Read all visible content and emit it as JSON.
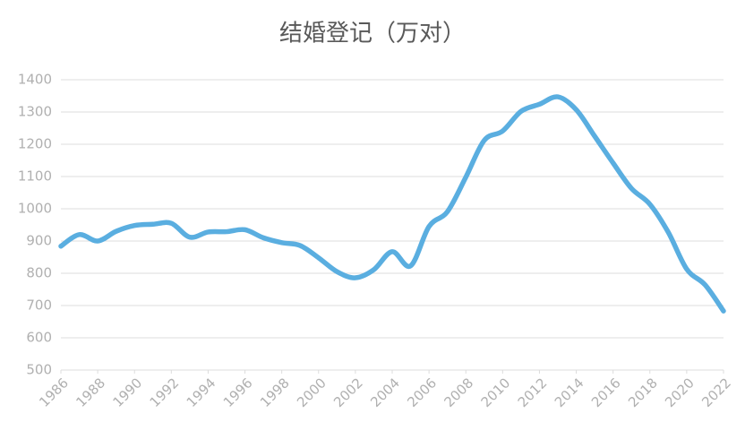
{
  "chart_data": {
    "type": "line",
    "title": "结婚登记（万对）",
    "x": [
      1986,
      1987,
      1988,
      1989,
      1990,
      1991,
      1992,
      1993,
      1994,
      1995,
      1996,
      1997,
      1998,
      1999,
      2000,
      2001,
      2002,
      2003,
      2004,
      2005,
      2006,
      2007,
      2008,
      2009,
      2010,
      2011,
      2012,
      2013,
      2014,
      2015,
      2016,
      2017,
      2018,
      2019,
      2020,
      2021,
      2022
    ],
    "series": [
      {
        "name": "结婚登记",
        "color": "#5aaee0",
        "values": [
          884,
          920,
          900,
          930,
          948,
          952,
          955,
          912,
          928,
          929,
          935,
          910,
          895,
          886,
          848,
          805,
          786,
          811,
          867,
          823,
          945,
          991,
          1098,
          1212,
          1241,
          1302,
          1324,
          1347,
          1307,
          1225,
          1142,
          1063,
          1014,
          927,
          813,
          764,
          683
        ]
      }
    ],
    "xlim": [
      1986,
      2022
    ],
    "xticks": [
      1986,
      1988,
      1990,
      1992,
      1994,
      1996,
      1998,
      2000,
      2002,
      2004,
      2006,
      2008,
      2010,
      2012,
      2014,
      2016,
      2018,
      2020,
      2022
    ],
    "ylim": [
      500,
      1400
    ],
    "yticks": [
      500,
      600,
      700,
      800,
      900,
      1000,
      1100,
      1200,
      1300,
      1400
    ],
    "grid": true
  }
}
